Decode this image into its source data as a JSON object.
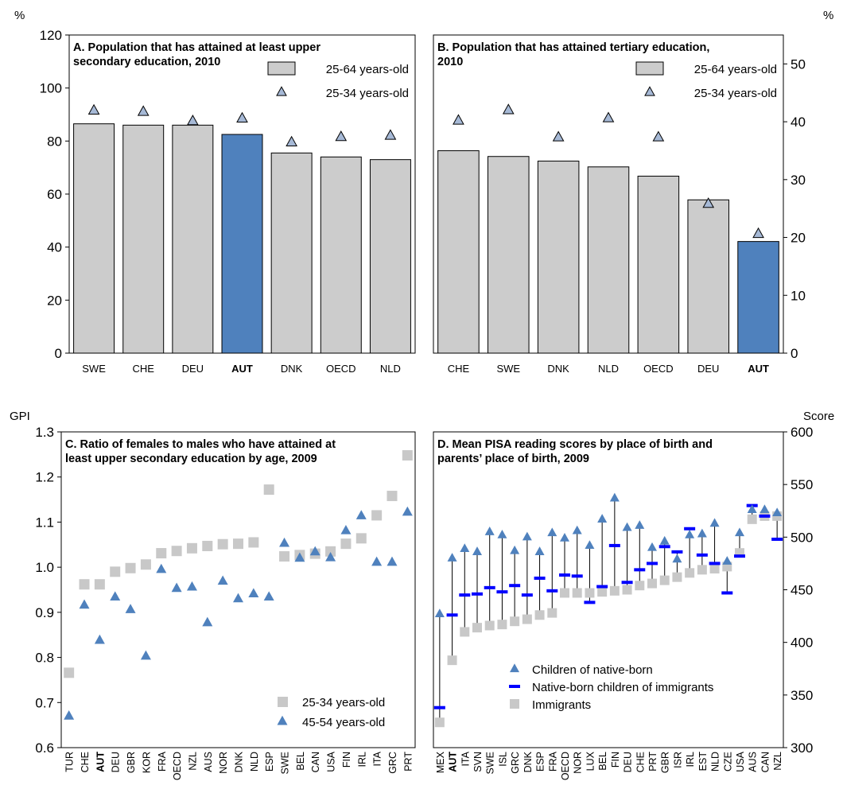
{
  "units": {
    "top_left": "%",
    "top_right": "%",
    "bottom_left": "GPI",
    "bottom_right": "Score"
  },
  "chart_data": [
    {
      "type": "bar",
      "panel": "A",
      "title": [
        "A. Population that has attained at least upper",
        "secondary education, 2010"
      ],
      "categories": [
        "SWE",
        "CHE",
        "DEU",
        "AUT",
        "DNK",
        "OECD",
        "NLD"
      ],
      "highlight": "AUT",
      "ylim": [
        0,
        120
      ],
      "yticks": [
        0,
        20,
        40,
        60,
        80,
        100,
        120
      ],
      "series": [
        {
          "name": "25-64 years-old",
          "kind": "bar",
          "values": [
            86.5,
            86,
            86,
            82.5,
            75.5,
            74,
            73
          ]
        },
        {
          "name": "25-34 years-old",
          "kind": "triangle",
          "values": [
            91.5,
            91,
            87.5,
            88.5,
            79.5,
            81.5,
            82
          ]
        }
      ],
      "colors": {
        "bar": "#cccccc",
        "highlight": "#4f81bd",
        "marker": "#a6b9d6"
      }
    },
    {
      "type": "bar",
      "panel": "B",
      "title": [
        "B. Population that has attained tertiary education,",
        "2010"
      ],
      "categories": [
        "CHE",
        "SWE",
        "DNK",
        "NLD",
        "OECD",
        "DEU",
        "AUT"
      ],
      "highlight": "AUT",
      "ylim": [
        0,
        55
      ],
      "yticks": [
        0,
        10,
        20,
        30,
        40,
        50
      ],
      "series": [
        {
          "name": "25-64 years-old",
          "kind": "bar",
          "values": [
            35,
            34,
            33.2,
            32.2,
            30.6,
            26.5,
            19.3
          ]
        },
        {
          "name": "25-34 years-old",
          "kind": "triangle",
          "values": [
            40.2,
            42,
            37.3,
            40.6,
            37.3,
            25.8,
            20.6
          ]
        }
      ],
      "colors": {
        "bar": "#cccccc",
        "highlight": "#4f81bd",
        "marker": "#a6b9d6"
      }
    },
    {
      "type": "scatter",
      "panel": "C",
      "title": [
        "C. Ratio of females to males who have attained at",
        "least upper secondary education by age, 2009"
      ],
      "categories": [
        "TUR",
        "CHE",
        "AUT",
        "DEU",
        "GBR",
        "KOR",
        "FRA",
        "OECD",
        "NZL",
        "AUS",
        "NOR",
        "DNK",
        "NLD",
        "ESP",
        "SWE",
        "BEL",
        "CAN",
        "USA",
        "FIN",
        "IRL",
        "ITA",
        "GRC",
        "PRT"
      ],
      "bold_categories": [
        "AUT"
      ],
      "ylim": [
        0.6,
        1.3
      ],
      "yticks": [
        0.6,
        0.7,
        0.8,
        0.9,
        1.0,
        1.1,
        1.2,
        1.3
      ],
      "series": [
        {
          "name": "25-34 years-old",
          "kind": "square",
          "values": [
            0.766,
            0.962,
            0.962,
            0.99,
            0.998,
            1.006,
            1.031,
            1.036,
            1.042,
            1.047,
            1.051,
            1.052,
            1.055,
            1.172,
            1.024,
            1.027,
            1.03,
            1.035,
            1.052,
            1.064,
            1.115,
            1.158,
            1.248
          ]
        },
        {
          "name": "45-54 years-old",
          "kind": "triangle",
          "values": [
            0.67,
            0.916,
            0.838,
            0.934,
            0.906,
            0.803,
            0.995,
            0.953,
            0.956,
            0.877,
            0.969,
            0.93,
            0.941,
            0.934,
            1.053,
            1.02,
            1.034,
            1.021,
            1.081,
            1.114,
            1.011,
            1.011,
            1.122
          ]
        }
      ],
      "colors": {
        "square": "#c8c8c8",
        "triangle": "#4f81bd"
      }
    },
    {
      "type": "scatter",
      "panel": "D",
      "title": [
        "D. Mean PISA reading scores by place of birth and",
        "parents’ place of birth, 2009"
      ],
      "categories": [
        "MEX",
        "AUT",
        "ITA",
        "SVN",
        "SWE",
        "ISL",
        "GRC",
        "DNK",
        "ESP",
        "FRA",
        "OECD",
        "NOR",
        "LUX",
        "BEL",
        "FIN",
        "DEU",
        "CHE",
        "PRT",
        "GBR",
        "ISR",
        "IRL",
        "EST",
        "NLD",
        "CZE",
        "USA",
        "AUS",
        "CAN",
        "NZL"
      ],
      "bold_categories": [
        "AUT"
      ],
      "ylim": [
        300,
        600
      ],
      "yticks": [
        300,
        350,
        400,
        450,
        500,
        550,
        600
      ],
      "series": [
        {
          "name": "Children of native-born",
          "kind": "triangle",
          "values": [
            427,
            480,
            489,
            486,
            505,
            502,
            487,
            500,
            486,
            504,
            499,
            506,
            492,
            517,
            537,
            509,
            511,
            490,
            496,
            479,
            502,
            503,
            513,
            477,
            504,
            526,
            526,
            523
          ]
        },
        {
          "name": "Native-born children of immigrants",
          "kind": "dash",
          "values": [
            338,
            426,
            445,
            446,
            452,
            448,
            454,
            445,
            461,
            449,
            464,
            463,
            438,
            453,
            492,
            457,
            469,
            475,
            491,
            486,
            508,
            483,
            475,
            447,
            482,
            530,
            520,
            498
          ]
        },
        {
          "name": "Immigrants",
          "kind": "square",
          "values": [
            324,
            383,
            410,
            414,
            416,
            417,
            420,
            422,
            426,
            428,
            447,
            447,
            447,
            448,
            449,
            450,
            454,
            456,
            459,
            462,
            466,
            469,
            470,
            472,
            485,
            517,
            520,
            520
          ]
        }
      ],
      "colors": {
        "triangle": "#4f81bd",
        "dash": "#0000ff",
        "square": "#c8c8c8",
        "stem": "#000000"
      }
    }
  ]
}
